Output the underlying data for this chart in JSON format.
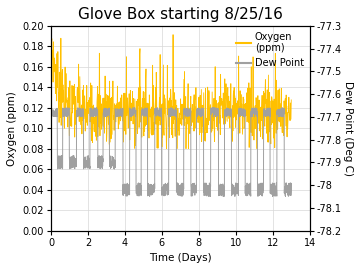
{
  "title": "Glove Box starting 8/25/16",
  "xlabel": "Time (Days)",
  "ylabel_left": "Oxygen (ppm)",
  "ylabel_right": "Dew Point (Deg C)",
  "legend_oxygen": "Oxygen\n(ppm)",
  "legend_dew": "Dew Point",
  "xlim": [
    0,
    14
  ],
  "ylim_left": [
    0.0,
    0.2
  ],
  "ylim_right": [
    -78.2,
    -77.3
  ],
  "yticks_left": [
    0.0,
    0.02,
    0.04,
    0.06,
    0.08,
    0.1,
    0.12,
    0.14,
    0.16,
    0.18,
    0.2
  ],
  "yticks_right": [
    -78.2,
    -78.1,
    -78.0,
    -77.9,
    -77.8,
    -77.7,
    -77.6,
    -77.5,
    -77.4,
    -77.3
  ],
  "xticks": [
    0,
    2,
    4,
    6,
    8,
    10,
    12,
    14
  ],
  "oxygen_color": "#FFC000",
  "dew_color": "#A0A0A0",
  "background_color": "#ffffff",
  "grid_color": "#D8D8D8",
  "title_fontsize": 11,
  "label_fontsize": 7.5,
  "tick_fontsize": 7,
  "legend_fontsize": 7
}
